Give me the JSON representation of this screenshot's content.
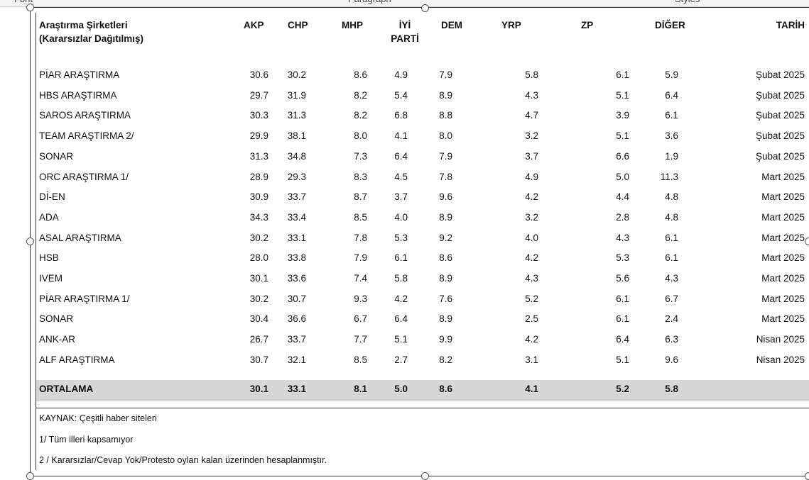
{
  "ribbon": [
    "Font",
    "Paragraph",
    "Styles"
  ],
  "table": {
    "header": [
      [
        "Araştırma Şirketleri",
        "(Kararsızlar Dağıtılmış)"
      ],
      [
        "AKP"
      ],
      [
        "CHP"
      ],
      [
        "MHP"
      ],
      [
        "İYİ",
        "PARTİ"
      ],
      [
        "DEM"
      ],
      [
        "YRP"
      ],
      [
        "ZP"
      ],
      [
        "DİĞER"
      ],
      [
        "TARİH"
      ]
    ],
    "rows": [
      [
        "PİAR ARAŞTIRMA",
        "30.6",
        "30.2",
        "8.6",
        "4.9",
        "7.9",
        "5.8",
        "6.1",
        "5.9",
        "Şubat 2025"
      ],
      [
        "HBS ARAŞTIRMA",
        "29.7",
        "31.9",
        "8.2",
        "5.4",
        "8.9",
        "4.3",
        "5.1",
        "6.4",
        "Şubat 2025"
      ],
      [
        "SAROS ARAŞTIRMA",
        "30.3",
        "31.3",
        "8.2",
        "6.8",
        "8.8",
        "4.7",
        "3.9",
        "6.1",
        "Şubat 2025"
      ],
      [
        "TEAM ARAŞTIRMA 2/",
        "29.9",
        "38.1",
        "8.0",
        "4.1",
        "8.0",
        "3.2",
        "5.1",
        "3.6",
        "Şubat 2025"
      ],
      [
        "SONAR",
        "31.3",
        "34.8",
        "7.3",
        "6.4",
        "7.9",
        "3.7",
        "6.6",
        "1.9",
        "Şubat 2025"
      ],
      [
        "ORC ARAŞTIRMA 1/",
        "28.9",
        "29.3",
        "8.3",
        "4.5",
        "7.8",
        "4.9",
        "5.0",
        "11.3",
        "Mart 2025"
      ],
      [
        "Dİ-EN",
        "30.9",
        "33.7",
        "8.7",
        "3.7",
        "9.6",
        "4.2",
        "4.4",
        "4.8",
        "Mart 2025"
      ],
      [
        "ADA",
        "34.3",
        "33.4",
        "8.5",
        "4.0",
        "8.9",
        "3.2",
        "2.8",
        "4.8",
        "Mart 2025"
      ],
      [
        "ASAL ARAŞTIRMA",
        "30.2",
        "33.1",
        "7.8",
        "5.3",
        "9.2",
        "4.0",
        "4.3",
        "6.1",
        "Mart 2025"
      ],
      [
        "HSB",
        "28.0",
        "33.8",
        "7.9",
        "6.1",
        "8.6",
        "4.2",
        "5.3",
        "6.1",
        "Mart 2025"
      ],
      [
        "IVEM",
        "30.1",
        "33.6",
        "7.4",
        "5.8",
        "8.9",
        "4.3",
        "5.6",
        "4.3",
        "Mart 2025"
      ],
      [
        "PİAR ARAŞTIRMA 1/",
        "30.2",
        "30.7",
        "9.3",
        "4.2",
        "7.6",
        "5.2",
        "6.1",
        "6.7",
        "Mart 2025"
      ],
      [
        "SONAR",
        "30.4",
        "36.6",
        "6.7",
        "6.4",
        "8.9",
        "2.5",
        "6.1",
        "2.4",
        "Mart 2025"
      ],
      [
        "ANK-AR",
        "26.7",
        "33.7",
        "7.7",
        "5.1",
        "9.9",
        "4.2",
        "6.4",
        "6.3",
        "Nisan 2025"
      ],
      [
        "ALF ARAŞTIRMA",
        "30.7",
        "32.1",
        "8.5",
        "2.7",
        "8.2",
        "3.1",
        "5.1",
        "9.6",
        "Nisan 2025"
      ]
    ],
    "average": [
      "ORTALAMA",
      "30.1",
      "33.1",
      "8.1",
      "5.0",
      "8.6",
      "4.1",
      "5.2",
      "5.8"
    ]
  },
  "notes": [
    "KAYNAK: Çeşitli haber siteleri",
    "1/ Tüm illeri kapsamıyor",
    "2 / Kararsızlar/Cevap Yok/Protesto oyları kalan üzerinden hesaplanmıştır."
  ]
}
